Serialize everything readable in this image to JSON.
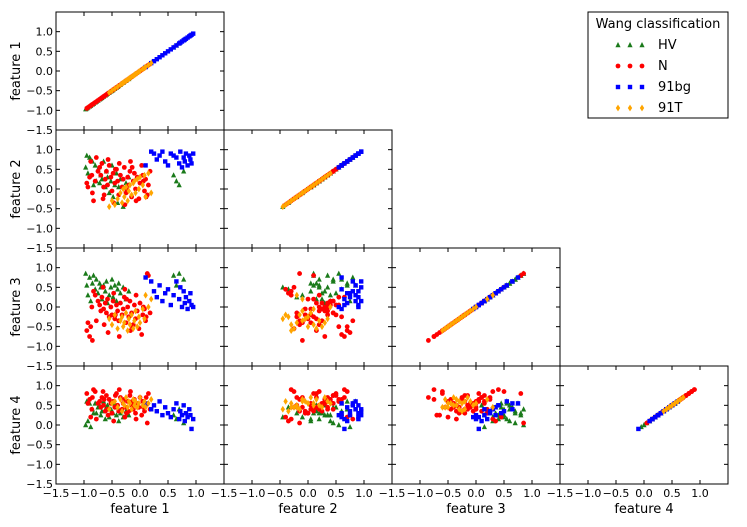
{
  "chart_data": {
    "type": "scatter",
    "layout": "lower-triangular scatter matrix",
    "features": [
      "feature 1",
      "feature 2",
      "feature 3",
      "feature 4"
    ],
    "axis_range": [
      -1.5,
      1.5
    ],
    "ticks": [
      -1.5,
      -1.0,
      -0.5,
      0.0,
      0.5,
      1.0
    ],
    "tick_labels": [
      "−1.5",
      "−1.0",
      "−0.5",
      "0.0",
      "0.5",
      "1.0"
    ],
    "grid": false,
    "legend": {
      "title": "Wang classification",
      "placement": "top-right",
      "entries": [
        {
          "label": "HV",
          "marker": "triangle",
          "color": "#1a7a1a"
        },
        {
          "label": "N",
          "marker": "circle",
          "color": "#ff0000"
        },
        {
          "label": "91bg",
          "marker": "square",
          "color": "#0000ff"
        },
        {
          "label": "91T",
          "marker": "diamond",
          "color": "#ffa500"
        }
      ]
    },
    "series": [
      {
        "name": "HV",
        "marker": "triangle",
        "color": "#1a7a1a",
        "points": [
          [
            -0.95,
            0.85,
            0.55,
            0.6
          ],
          [
            -0.9,
            0.8,
            0.75,
            0.55
          ],
          [
            -0.85,
            0.7,
            0.6,
            0.4
          ],
          [
            -0.8,
            0.6,
            0.45,
            0.55
          ],
          [
            -0.78,
            0.2,
            0.7,
            0.3
          ],
          [
            -0.75,
            0.5,
            0.35,
            0.45
          ],
          [
            -0.72,
            0.15,
            0.6,
            0.5
          ],
          [
            -0.7,
            0.35,
            0.5,
            0.25
          ],
          [
            -0.68,
            0.25,
            0.2,
            0.35
          ],
          [
            -0.65,
            0.7,
            0.55,
            0.6
          ],
          [
            -0.62,
            0.05,
            0.4,
            0.15
          ],
          [
            -0.6,
            0.45,
            0.65,
            0.45
          ],
          [
            -0.58,
            0.3,
            0.1,
            0.5
          ],
          [
            -0.55,
            -0.1,
            0.3,
            0.2
          ],
          [
            -0.52,
            0.2,
            0.5,
            0.4
          ],
          [
            -0.5,
            0.6,
            0.7,
            0.35
          ],
          [
            -0.48,
            -0.2,
            0.25,
            0.3
          ],
          [
            -0.45,
            0.1,
            0.55,
            0.55
          ],
          [
            -0.42,
            0.4,
            0.15,
            0.25
          ],
          [
            -0.4,
            -0.35,
            0.45,
            0.45
          ],
          [
            -0.38,
            0.05,
            0.6,
            0.1
          ],
          [
            -0.35,
            0.25,
            0.35,
            0.3
          ],
          [
            -0.3,
            -0.45,
            0.5,
            0.2
          ],
          [
            -0.25,
            0.15,
            0.2,
            0.35
          ],
          [
            -0.2,
            0.3,
            0.4,
            0.25
          ],
          [
            -0.97,
            0.55,
            0.85,
            0.0
          ],
          [
            -0.93,
            0.4,
            0.3,
            0.1
          ],
          [
            -0.88,
            0.75,
            0.15,
            -0.05
          ],
          [
            -0.83,
            0.1,
            0.8,
            0.3
          ],
          [
            0.6,
            0.35,
            0.8,
            0.25
          ],
          [
            0.65,
            0.2,
            0.55,
            0.15
          ],
          [
            0.7,
            0.1,
            0.85,
            0.4
          ],
          [
            0.78,
            0.45,
            0.7,
            0.05
          ]
        ]
      },
      {
        "name": "N",
        "marker": "circle",
        "color": "#ff0000",
        "points": [
          [
            -0.95,
            0.15,
            -0.6,
            0.8
          ],
          [
            -0.9,
            0.3,
            -0.75,
            0.65
          ],
          [
            -0.85,
            -0.1,
            -0.85,
            0.7
          ],
          [
            -0.8,
            0.2,
            0.3,
            0.85
          ],
          [
            -0.75,
            0.45,
            0.15,
            0.55
          ],
          [
            -0.72,
            0.55,
            0.05,
            0.6
          ],
          [
            -0.7,
            0.35,
            -0.1,
            0.45
          ],
          [
            -0.68,
            0.65,
            0.25,
            0.7
          ],
          [
            -0.65,
            0.05,
            -0.05,
            0.5
          ],
          [
            -0.62,
            0.25,
            0.1,
            0.35
          ],
          [
            -0.6,
            0.45,
            -0.15,
            0.75
          ],
          [
            -0.58,
            0.1,
            0.2,
            0.4
          ],
          [
            -0.55,
            0.6,
            -0.25,
            0.65
          ],
          [
            -0.52,
            0.3,
            0.0,
            0.55
          ],
          [
            -0.5,
            -0.05,
            -0.2,
            0.3
          ],
          [
            -0.48,
            0.4,
            0.15,
            0.6
          ],
          [
            -0.45,
            0.15,
            -0.3,
            0.45
          ],
          [
            -0.42,
            0.5,
            0.05,
            0.8
          ],
          [
            -0.4,
            0.2,
            -0.1,
            0.5
          ],
          [
            -0.38,
            -0.15,
            -0.35,
            0.35
          ],
          [
            -0.35,
            0.35,
            0.1,
            0.7
          ],
          [
            -0.32,
            0.05,
            -0.2,
            0.4
          ],
          [
            -0.3,
            0.25,
            -0.05,
            0.55
          ],
          [
            -0.28,
            0.55,
            0.25,
            0.65
          ],
          [
            -0.25,
            -0.1,
            -0.4,
            0.45
          ],
          [
            -0.22,
            0.3,
            0.0,
            0.6
          ],
          [
            -0.2,
            0.1,
            -0.25,
            0.35
          ],
          [
            -0.18,
            0.45,
            0.15,
            0.75
          ],
          [
            -0.15,
            -0.2,
            -0.15,
            0.5
          ],
          [
            -0.12,
            0.2,
            -0.45,
            0.4
          ],
          [
            -0.1,
            0.4,
            0.05,
            0.65
          ],
          [
            -0.08,
            0.0,
            -0.3,
            0.3
          ],
          [
            -0.05,
            0.3,
            -0.1,
            0.55
          ],
          [
            -0.02,
            -0.25,
            -0.55,
            0.45
          ],
          [
            0.0,
            0.15,
            0.1,
            0.7
          ],
          [
            0.05,
            0.35,
            -0.2,
            0.6
          ],
          [
            0.08,
            -0.05,
            -0.05,
            0.35
          ],
          [
            0.1,
            0.25,
            -0.35,
            0.5
          ],
          [
            0.15,
            0.1,
            0.8,
            0.8
          ],
          [
            0.18,
            0.45,
            -0.15,
            0.4
          ],
          [
            -0.88,
            0.7,
            -0.5,
            0.2
          ],
          [
            -0.83,
            -0.3,
            0.4,
            0.9
          ],
          [
            -0.78,
            0.8,
            -0.35,
            0.15
          ],
          [
            -0.66,
            -0.25,
            0.5,
            0.85
          ],
          [
            -0.57,
            0.75,
            -0.65,
            0.25
          ],
          [
            -0.47,
            -0.35,
            0.35,
            0.1
          ],
          [
            -0.37,
            0.65,
            -0.75,
            0.9
          ],
          [
            -0.27,
            -0.4,
            0.45,
            0.2
          ],
          [
            -0.17,
            0.7,
            -0.6,
            0.85
          ],
          [
            -0.07,
            -0.3,
            0.3,
            0.15
          ],
          [
            0.03,
            0.6,
            -0.7,
            0.25
          ],
          [
            0.13,
            -0.15,
            0.85,
            0.05
          ],
          [
            -0.93,
            0.05,
            -0.4,
            0.55
          ],
          [
            -0.86,
            0.35,
            0.0,
            0.4
          ],
          [
            -0.64,
            -0.15,
            -0.45,
            0.65
          ],
          [
            -0.44,
            0.5,
            -0.2,
            0.75
          ],
          [
            -0.24,
            0.0,
            0.2,
            0.3
          ],
          [
            -0.14,
            0.55,
            -0.5,
            0.6
          ],
          [
            0.06,
            0.2,
            0.0,
            0.45
          ],
          [
            0.11,
            -0.2,
            -0.25,
            0.7
          ]
        ]
      },
      {
        "name": "91bg",
        "marker": "square",
        "color": "#0000ff",
        "points": [
          [
            0.1,
            0.6,
            0.75,
            0.55
          ],
          [
            0.2,
            0.95,
            0.65,
            0.4
          ],
          [
            0.25,
            0.9,
            0.4,
            0.5
          ],
          [
            0.3,
            0.75,
            0.25,
            0.35
          ],
          [
            0.35,
            0.85,
            0.55,
            0.6
          ],
          [
            0.4,
            0.95,
            0.15,
            0.25
          ],
          [
            0.45,
            0.7,
            0.35,
            0.45
          ],
          [
            0.5,
            0.6,
            0.45,
            0.3
          ],
          [
            0.55,
            0.9,
            0.05,
            0.2
          ],
          [
            0.6,
            0.85,
            0.3,
            0.4
          ],
          [
            0.65,
            0.8,
            0.65,
            0.55
          ],
          [
            0.7,
            0.65,
            0.2,
            0.15
          ],
          [
            0.72,
            0.95,
            0.5,
            0.35
          ],
          [
            0.75,
            0.55,
            0.0,
            0.25
          ],
          [
            0.78,
            0.8,
            0.4,
            0.5
          ],
          [
            0.8,
            0.7,
            0.1,
            0.1
          ],
          [
            0.82,
            0.9,
            0.25,
            0.3
          ],
          [
            0.85,
            0.6,
            -0.05,
            0.2
          ],
          [
            0.88,
            0.85,
            0.15,
            0.4
          ],
          [
            0.9,
            0.75,
            0.35,
            0.25
          ],
          [
            0.92,
            0.65,
            0.05,
            -0.1
          ],
          [
            0.95,
            0.9,
            0.0,
            0.15
          ]
        ]
      },
      {
        "name": "91T",
        "marker": "diamond",
        "color": "#ffa500",
        "points": [
          [
            -0.55,
            -0.45,
            -0.3,
            0.4
          ],
          [
            -0.5,
            -0.3,
            -0.45,
            0.55
          ],
          [
            -0.45,
            -0.4,
            -0.2,
            0.6
          ],
          [
            -0.4,
            -0.25,
            -0.55,
            0.45
          ],
          [
            -0.35,
            -0.1,
            -0.35,
            0.65
          ],
          [
            -0.32,
            -0.35,
            -0.25,
            0.35
          ],
          [
            -0.3,
            0.0,
            -0.5,
            0.55
          ],
          [
            -0.28,
            -0.2,
            -0.4,
            0.5
          ],
          [
            -0.25,
            0.05,
            -0.15,
            0.7
          ],
          [
            -0.22,
            -0.3,
            -0.6,
            0.45
          ],
          [
            -0.2,
            -0.05,
            -0.3,
            0.6
          ],
          [
            -0.18,
            0.1,
            -0.45,
            0.55
          ],
          [
            -0.15,
            -0.15,
            -0.2,
            0.4
          ],
          [
            -0.12,
            0.15,
            -0.55,
            0.65
          ],
          [
            -0.1,
            0.2,
            -0.35,
            0.5
          ],
          [
            -0.08,
            -0.1,
            -0.1,
            0.6
          ],
          [
            -0.05,
            0.25,
            -0.5,
            0.45
          ],
          [
            -0.02,
            0.0,
            -0.25,
            0.55
          ],
          [
            0.0,
            0.3,
            -0.4,
            0.7
          ],
          [
            0.05,
            0.1,
            -0.05,
            0.5
          ],
          [
            0.08,
            0.35,
            -0.3,
            0.6
          ],
          [
            0.1,
            -0.2,
            0.3,
            0.45
          ],
          [
            0.15,
            0.4,
            0.0,
            0.55
          ],
          [
            0.2,
            -0.1,
            0.2,
            0.65
          ]
        ]
      }
    ]
  }
}
